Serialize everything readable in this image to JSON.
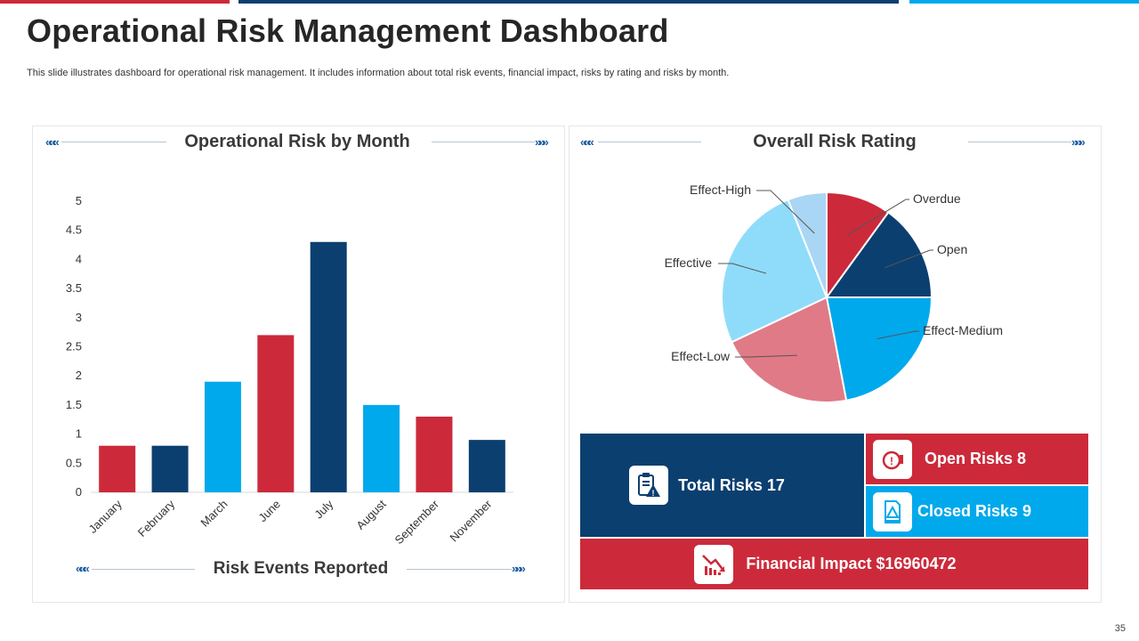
{
  "colors": {
    "red": "#cc2a3a",
    "navy": "#0b3f70",
    "blue": "#00a9ec",
    "light_blue": "#8fdcfa",
    "pink": "#e07a86",
    "pale_blue": "#a9d6f5"
  },
  "header": {
    "title": "Operational Risk Management Dashboard",
    "subtitle": "This slide illustrates dashboard for operational risk management. It includes information about total risk events, financial impact, risks by rating and risks by month."
  },
  "chart_data": [
    {
      "type": "bar",
      "title": "Operational Risk by Month",
      "xlabel": "Risk Events Reported",
      "ylabel": "",
      "categories": [
        "January",
        "February",
        "March",
        "June",
        "July",
        "August",
        "September",
        "November"
      ],
      "values": [
        0.8,
        0.8,
        1.9,
        2.7,
        4.3,
        1.5,
        1.3,
        0.9
      ],
      "bar_colors": [
        "#cc2a3a",
        "#0b3f70",
        "#00a9ec",
        "#cc2a3a",
        "#0b3f70",
        "#00a9ec",
        "#cc2a3a",
        "#0b3f70"
      ],
      "ylim": [
        0,
        5
      ],
      "yticks": [
        "0",
        "0.5",
        "1",
        "1.5",
        "2",
        "2.5",
        "3",
        "3.5",
        "4",
        "4.5",
        "5"
      ],
      "grid": false
    },
    {
      "type": "pie",
      "title": "Overall Risk Rating",
      "slices": [
        {
          "label": "Overdue",
          "value": 10,
          "color": "#cc2a3a"
        },
        {
          "label": "Open",
          "value": 15,
          "color": "#0b3f70"
        },
        {
          "label": "Effect-Medium",
          "value": 22,
          "color": "#00a9ec"
        },
        {
          "label": "Effect-Low",
          "value": 21,
          "color": "#e07a86"
        },
        {
          "label": "Effective",
          "value": 26,
          "color": "#8fdcfa"
        },
        {
          "label": "Effect-High",
          "value": 6,
          "color": "#a9d6f5"
        }
      ]
    }
  ],
  "tiles": {
    "total": "Total Risks 17",
    "open": "Open Risks 8",
    "closed": "Closed Risks 9",
    "financial": "Financial Impact  $16960472"
  },
  "page_number": "35"
}
